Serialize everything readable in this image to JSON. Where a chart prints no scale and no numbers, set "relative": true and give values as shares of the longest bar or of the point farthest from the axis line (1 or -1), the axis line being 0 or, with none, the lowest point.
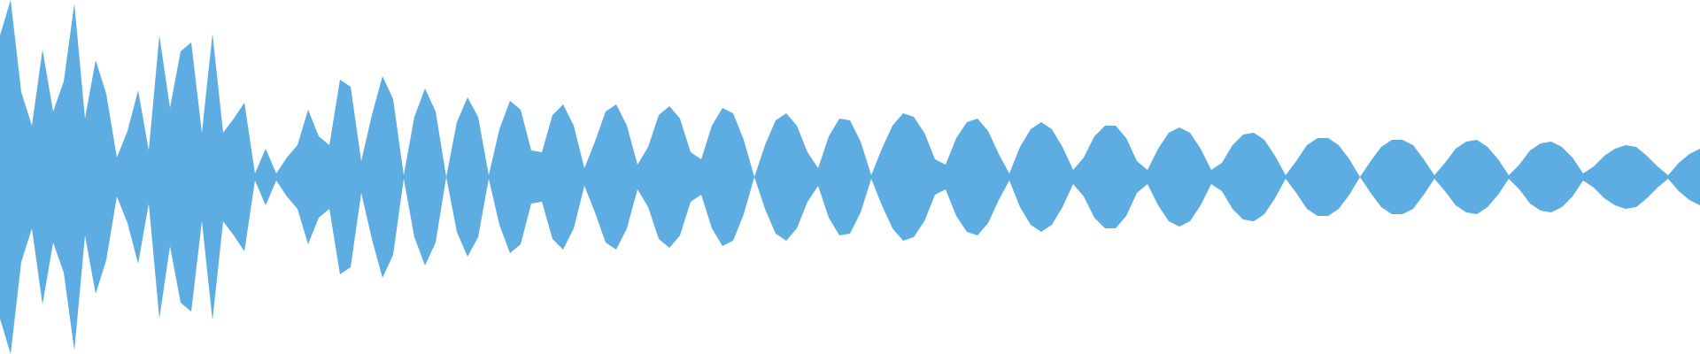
{
  "chart_data": {
    "type": "area",
    "relative": true,
    "ref_lines": [
      {
        "axis": "y",
        "value": 0,
        "color": "#5dade2"
      }
    ],
    "categories": [
      null,
      null,
      null,
      null,
      null,
      null,
      null,
      null,
      null,
      null,
      null,
      null,
      null,
      null,
      null,
      null,
      null,
      null,
      null,
      null,
      null,
      null,
      null,
      null,
      null,
      null,
      null,
      null,
      null,
      null,
      null,
      null,
      null,
      null,
      null,
      null,
      null,
      null,
      null,
      null,
      null,
      null,
      null,
      null,
      null,
      null,
      null,
      null,
      null,
      null,
      null,
      null,
      null,
      null,
      null,
      null,
      null,
      null,
      null,
      null,
      null,
      null,
      null,
      null,
      null,
      null,
      null,
      null,
      null,
      null,
      null,
      null,
      null,
      null,
      null,
      null,
      null,
      null,
      null,
      null,
      null,
      null,
      null,
      null,
      null,
      null,
      null,
      null,
      null,
      null,
      null,
      null,
      null,
      null,
      null,
      null,
      null,
      null,
      null,
      null,
      null,
      null,
      null,
      null,
      null,
      null,
      null,
      null,
      null,
      null,
      null,
      null,
      null,
      null,
      null,
      null,
      null,
      null,
      null,
      null,
      null,
      null,
      null,
      null,
      null,
      null,
      null,
      null,
      null,
      null,
      null,
      null,
      null,
      null,
      null,
      null,
      null,
      null,
      null,
      null,
      null,
      null,
      null,
      null,
      null,
      null,
      null,
      null,
      null,
      null,
      null,
      null,
      null,
      null,
      null,
      null,
      null,
      null,
      null,
      null,
      null
    ],
    "series": [
      {
        "color": "#5dade2",
        "values": [
          0.8,
          1.0,
          0.48,
          0.29,
          0.72,
          0.37,
          0.54,
          0.98,
          0.33,
          0.66,
          0.47,
          0.11,
          0.26,
          0.49,
          0.15,
          0.8,
          0.39,
          0.71,
          0.76,
          0.25,
          0.81,
          0.25,
          0.33,
          0.42,
          0.02,
          0.16,
          0.02,
          0.11,
          0.18,
          0.38,
          0.23,
          0.18,
          0.55,
          0.51,
          0.09,
          0.35,
          0.57,
          0.44,
          0.01,
          0.34,
          0.5,
          0.37,
          0,
          0.31,
          0.45,
          0.34,
          0.01,
          0.27,
          0.43,
          0.38,
          0.15,
          0.14,
          0.35,
          0.41,
          0.29,
          0.05,
          0.2,
          0.37,
          0.41,
          0.29,
          0.07,
          0.17,
          0.35,
          0.4,
          0.33,
          0.14,
          0.1,
          0.29,
          0.39,
          0.36,
          0.21,
          0,
          0.18,
          0.32,
          0.36,
          0.29,
          0.14,
          0.05,
          0.23,
          0.33,
          0.32,
          0.2,
          0.01,
          0.16,
          0.29,
          0.36,
          0.34,
          0.25,
          0.1,
          0.07,
          0.22,
          0.31,
          0.33,
          0.26,
          0.13,
          0.02,
          0.17,
          0.27,
          0.31,
          0.27,
          0.17,
          0.04,
          0.11,
          0.23,
          0.29,
          0.29,
          0.22,
          0.09,
          0.04,
          0.16,
          0.25,
          0.28,
          0.25,
          0.16,
          0.04,
          0.08,
          0.18,
          0.24,
          0.25,
          0.21,
          0.12,
          0.01,
          0.09,
          0.18,
          0.22,
          0.22,
          0.18,
          0.1,
          0,
          0.09,
          0.17,
          0.21,
          0.21,
          0.18,
          0.1,
          0.01,
          0.08,
          0.16,
          0.2,
          0.21,
          0.17,
          0.1,
          0.01,
          0.07,
          0.15,
          0.19,
          0.2,
          0.17,
          0.11,
          0.02,
          0.06,
          0.12,
          0.16,
          0.18,
          0.17,
          0.12,
          0.06,
          0.01,
          0.08,
          0.13,
          0.16
        ]
      },
      {
        "color": "#5dade2",
        "values": [
          -0.8,
          -1.0,
          -0.48,
          -0.29,
          -0.72,
          -0.37,
          -0.54,
          -0.98,
          -0.33,
          -0.66,
          -0.47,
          -0.11,
          -0.26,
          -0.49,
          -0.15,
          -0.8,
          -0.39,
          -0.71,
          -0.76,
          -0.25,
          -0.81,
          -0.25,
          -0.33,
          -0.42,
          -0.02,
          -0.16,
          -0.02,
          -0.11,
          -0.18,
          -0.38,
          -0.23,
          -0.18,
          -0.55,
          -0.51,
          -0.09,
          -0.35,
          -0.57,
          -0.44,
          -0.01,
          -0.34,
          -0.5,
          -0.37,
          0,
          -0.31,
          -0.45,
          -0.34,
          -0.01,
          -0.27,
          -0.43,
          -0.38,
          -0.15,
          -0.14,
          -0.35,
          -0.41,
          -0.29,
          -0.05,
          -0.2,
          -0.37,
          -0.41,
          -0.29,
          -0.07,
          -0.17,
          -0.35,
          -0.4,
          -0.33,
          -0.14,
          -0.1,
          -0.29,
          -0.39,
          -0.36,
          -0.21,
          0,
          -0.18,
          -0.32,
          -0.36,
          -0.29,
          -0.14,
          -0.05,
          -0.23,
          -0.33,
          -0.32,
          -0.2,
          -0.01,
          -0.16,
          -0.29,
          -0.36,
          -0.34,
          -0.25,
          -0.1,
          -0.07,
          -0.22,
          -0.31,
          -0.33,
          -0.26,
          -0.13,
          -0.02,
          -0.17,
          -0.27,
          -0.31,
          -0.27,
          -0.17,
          -0.04,
          -0.11,
          -0.23,
          -0.29,
          -0.29,
          -0.22,
          -0.09,
          -0.04,
          -0.16,
          -0.25,
          -0.28,
          -0.25,
          -0.16,
          -0.04,
          -0.08,
          -0.18,
          -0.24,
          -0.25,
          -0.21,
          -0.12,
          -0.01,
          -0.09,
          -0.18,
          -0.22,
          -0.22,
          -0.18,
          -0.1,
          0,
          -0.09,
          -0.17,
          -0.21,
          -0.21,
          -0.18,
          -0.1,
          -0.01,
          -0.08,
          -0.16,
          -0.2,
          -0.21,
          -0.17,
          -0.1,
          -0.01,
          -0.07,
          -0.15,
          -0.19,
          -0.2,
          -0.17,
          -0.11,
          -0.02,
          -0.06,
          -0.12,
          -0.16,
          -0.18,
          -0.17,
          -0.12,
          -0.06,
          -0.01,
          -0.08,
          -0.13,
          -0.16
        ]
      }
    ]
  }
}
